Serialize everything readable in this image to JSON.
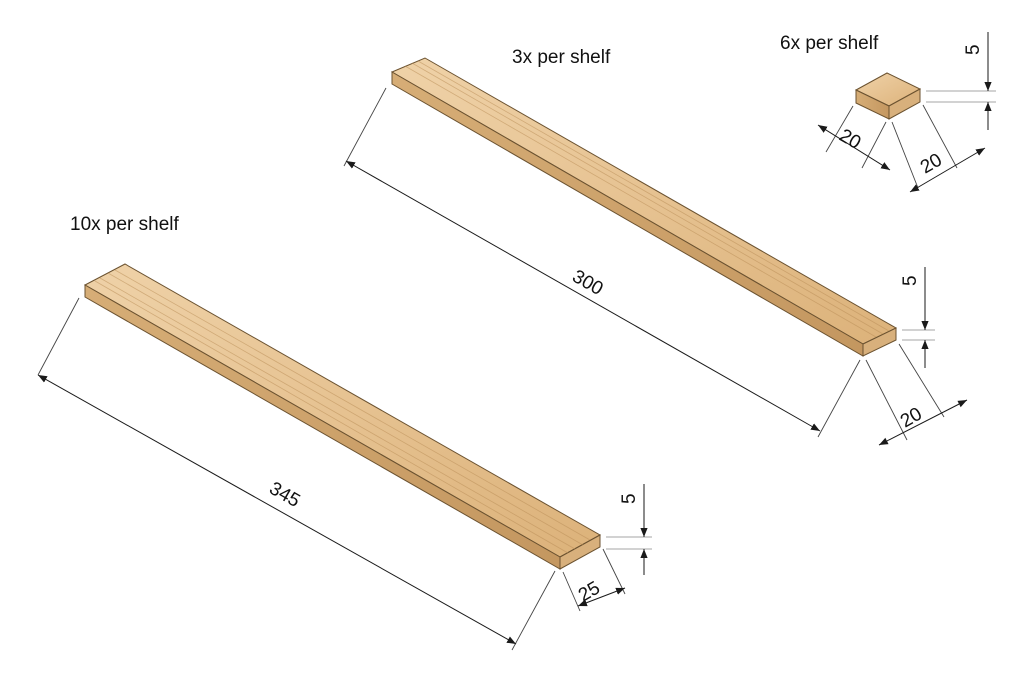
{
  "parts": [
    {
      "quantity_label": "10x per shelf",
      "dimensions": {
        "length": "345",
        "width": "25",
        "thickness": "5"
      }
    },
    {
      "quantity_label": "3x per shelf",
      "dimensions": {
        "length": "300",
        "width": "20",
        "thickness": "5"
      }
    },
    {
      "quantity_label": "6x per shelf",
      "dimensions": {
        "width_a": "20",
        "width_b": "20",
        "thickness": "5"
      }
    }
  ],
  "colors": {
    "wood_top": "#e8c699",
    "wood_side": "#cfa56d",
    "wood_end": "#d8b07c",
    "dimension_line": "#1a1a1a"
  }
}
